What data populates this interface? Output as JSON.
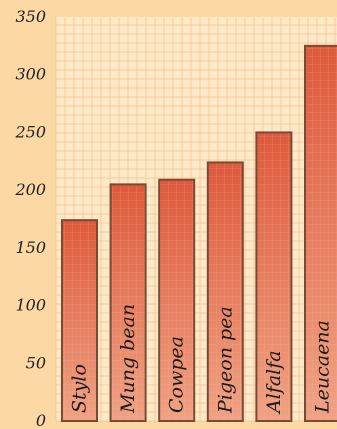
{
  "chart_data": {
    "type": "bar",
    "categories": [
      "Stylo",
      "Mung bean",
      "Cowpea",
      "Pigeon pea",
      "Alfalfa",
      "Leucaena"
    ],
    "values": [
      174,
      205,
      209,
      224,
      250,
      325
    ],
    "title": "",
    "xlabel": "",
    "ylabel": "",
    "ylim": [
      0,
      350
    ],
    "yticks": [
      0,
      50,
      100,
      150,
      200,
      250,
      300,
      350
    ],
    "grid": true,
    "legend": "none",
    "colors": {
      "background": "#fcd9a4",
      "plot_background": "#fde9c8",
      "grid": "#f3bf8c",
      "bar_top": "#de5a3c",
      "bar_bottom": "#f0a284",
      "bar_edge": "#7a4a35"
    }
  }
}
